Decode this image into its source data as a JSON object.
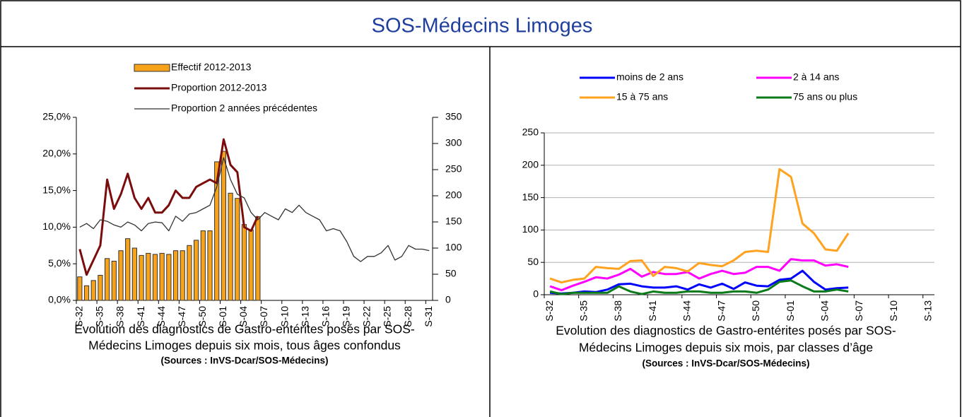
{
  "header": {
    "title": "SOS-Médecins Limoges"
  },
  "chart_data": [
    {
      "type": "bar",
      "categories": [
        "S-32",
        null,
        null,
        "S-35",
        null,
        null,
        "S-38",
        null,
        null,
        "S-41",
        null,
        null,
        "S-44",
        null,
        null,
        "S-47",
        null,
        null,
        "S-50",
        null,
        null,
        "S-01",
        null,
        null,
        "S-04",
        null,
        null,
        "S-07",
        null,
        null,
        "S-10",
        null,
        null,
        "S-13",
        null,
        null,
        "S-16",
        null,
        null,
        "S-19",
        null,
        null,
        "S-22",
        null,
        null,
        "S-25",
        null,
        null,
        "S-28",
        null,
        null,
        "S-31"
      ],
      "series": [
        {
          "name": "Effectif 2012-2013",
          "type": "bar",
          "axis": "y2",
          "color": "#f7a21b",
          "values": [
            45,
            28,
            38,
            48,
            80,
            75,
            95,
            118,
            100,
            86,
            90,
            88,
            90,
            88,
            95,
            95,
            105,
            115,
            133,
            133,
            265,
            285,
            205,
            195,
            145,
            135,
            160,
            null,
            null,
            null,
            null,
            null,
            null,
            null,
            null,
            null,
            null,
            null,
            null,
            null,
            null,
            null,
            null,
            null,
            null,
            null,
            null,
            null,
            null,
            null,
            null,
            null
          ]
        },
        {
          "name": "Proportion 2012-2013",
          "type": "line",
          "color": "#7b0c0c",
          "values": [
            7.0,
            3.5,
            5.5,
            7.5,
            16.5,
            12.5,
            14.5,
            17.3,
            14.0,
            12.5,
            14.0,
            12.0,
            12.0,
            13.0,
            15.0,
            14.0,
            14.0,
            15.5,
            16.0,
            16.5,
            16.0,
            22.0,
            18.5,
            17.5,
            10.0,
            9.5,
            11.5,
            null,
            null,
            null,
            null,
            null,
            null,
            null,
            null,
            null,
            null,
            null,
            null,
            null,
            null,
            null,
            null,
            null,
            null,
            null,
            null,
            null,
            null,
            null,
            null,
            null
          ]
        },
        {
          "name": "Proportion 2 années précédentes",
          "type": "line",
          "color": "#333333",
          "values": [
            10.0,
            10.5,
            9.8,
            11.0,
            10.8,
            10.3,
            10.0,
            10.7,
            10.3,
            9.5,
            10.5,
            10.7,
            10.6,
            9.5,
            11.5,
            10.8,
            11.8,
            12.0,
            12.5,
            13.0,
            15.5,
            19.5,
            16.5,
            14.5,
            14.0,
            12.0,
            11.0,
            12.0,
            11.5,
            11.0,
            12.5,
            12.0,
            13.0,
            12.0,
            11.5,
            11.0,
            9.5,
            9.8,
            9.5,
            8.0,
            6.0,
            5.3,
            6.0,
            6.0,
            6.5,
            7.5,
            5.5,
            6.0,
            7.5,
            7.0,
            7.0,
            6.8
          ]
        }
      ],
      "ylim": [
        0,
        25
      ],
      "yticks": [
        {
          "value": 0,
          "label": "0,0%"
        },
        {
          "value": 5,
          "label": "5,0%"
        },
        {
          "value": 10,
          "label": "10,0%"
        },
        {
          "value": 15,
          "label": "15,0%"
        },
        {
          "value": 20,
          "label": "20,0%"
        },
        {
          "value": 25,
          "label": "25,0%"
        }
      ],
      "y2lim": [
        0,
        350
      ],
      "y2ticks": [
        0,
        50,
        100,
        150,
        200,
        250,
        300,
        350
      ],
      "grid": false,
      "caption": [
        "Evolution des diagnostics de Gastro-entérites posés par SOS-",
        "Médecins Limoges depuis six mois, tous âges confondus"
      ],
      "source": "(Sources : InVS-Dcar/SOS-Médecins)"
    },
    {
      "type": "line",
      "categories": [
        "S-32",
        null,
        null,
        "S-35",
        null,
        null,
        "S-38",
        null,
        null,
        "S-41",
        null,
        null,
        "S-44",
        null,
        null,
        "S-47",
        null,
        null,
        "S-50",
        null,
        null,
        "S-01",
        null,
        null,
        "S-04",
        null,
        null,
        "S-07",
        null,
        null,
        "S-10",
        null,
        null,
        "S-13"
      ],
      "series": [
        {
          "name": "moins de 2 ans",
          "color": "#0000ff",
          "values": [
            3,
            2,
            3,
            5,
            4,
            8,
            16,
            17,
            13,
            11,
            11,
            13,
            8,
            16,
            11,
            17,
            9,
            19,
            14,
            13,
            23,
            25,
            37,
            20,
            8,
            10,
            11,
            null,
            null,
            null,
            null,
            null,
            null,
            null
          ]
        },
        {
          "name": "2 à 14 ans",
          "color": "#ff00ff",
          "values": [
            13,
            7,
            14,
            20,
            27,
            25,
            31,
            40,
            28,
            35,
            32,
            32,
            35,
            25,
            32,
            37,
            32,
            34,
            43,
            43,
            37,
            55,
            53,
            53,
            45,
            47,
            43,
            null,
            null,
            null,
            null,
            null,
            null,
            null
          ]
        },
        {
          "name": "15 à 75 ans",
          "color": "#ffa21f",
          "values": [
            25,
            19,
            23,
            25,
            43,
            41,
            40,
            52,
            53,
            29,
            43,
            41,
            36,
            49,
            46,
            44,
            53,
            66,
            68,
            66,
            194,
            182,
            110,
            95,
            70,
            68,
            95,
            null,
            null,
            null,
            null,
            null,
            null,
            null
          ]
        },
        {
          "name": "75 ans ou plus",
          "color": "#0a7a1a",
          "values": [
            5,
            1,
            3,
            3,
            3,
            3,
            13,
            5,
            1,
            5,
            3,
            3,
            5,
            5,
            3,
            3,
            5,
            5,
            3,
            8,
            20,
            22,
            13,
            5,
            5,
            8,
            5,
            null,
            null,
            null,
            null,
            null,
            null,
            null
          ]
        }
      ],
      "ylim": [
        0,
        250
      ],
      "yticks": [
        0,
        50,
        100,
        150,
        200,
        250
      ],
      "grid": true,
      "caption": [
        "Evolution des diagnostics de Gastro-entérites posés par SOS-",
        "Médecins Limoges depuis six mois, par classes d’âge"
      ],
      "source": "(Sources : InVS-Dcar/SOS-Médecins)"
    }
  ]
}
